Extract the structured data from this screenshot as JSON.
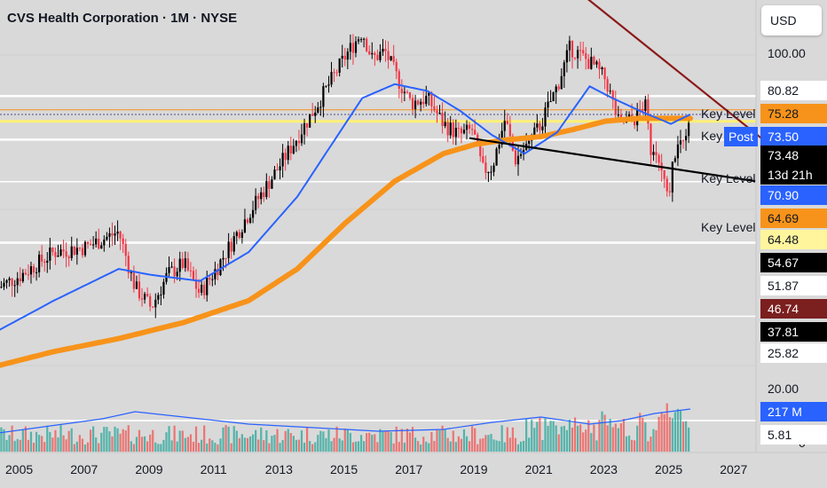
{
  "chart_header": {
    "title": "CVS Health Corporation · 1M · NYSE",
    "currency": "USD"
  },
  "y_axis_ticks": [
    "100.00",
    "20.00",
    "0"
  ],
  "x_axis_ticks": [
    "2005",
    "2007",
    "2009",
    "2011",
    "2013",
    "2015",
    "2017",
    "2019",
    "2021",
    "2023",
    "2025",
    "2027"
  ],
  "price_labels": [
    {
      "text": "80.82",
      "bg": "#ffffff",
      "fg": "#131722"
    },
    {
      "text": "75.28",
      "bg": "#f7931a",
      "fg": "#131722"
    },
    {
      "text": "73.50",
      "bg": "#2962ff",
      "fg": "#ffffff"
    },
    {
      "text": "73.48",
      "bg": "#000000",
      "fg": "#ffffff"
    },
    {
      "text": "70.90",
      "bg": "#2962ff",
      "fg": "#ffffff"
    },
    {
      "text": "64.69",
      "bg": "#f7931a",
      "fg": "#131722"
    },
    {
      "text": "64.48",
      "bg": "#fff59d",
      "fg": "#131722"
    },
    {
      "text": "54.67",
      "bg": "#000000",
      "fg": "#ffffff"
    },
    {
      "text": "51.87",
      "bg": "#ffffff",
      "fg": "#131722"
    },
    {
      "text": "46.74",
      "bg": "#7b1f1f",
      "fg": "#ffffff"
    },
    {
      "text": "37.81",
      "bg": "#000000",
      "fg": "#ffffff"
    },
    {
      "text": "25.82",
      "bg": "#ffffff",
      "fg": "#131722"
    },
    {
      "text": "217 M",
      "bg": "#2962ff",
      "fg": "#ffffff"
    },
    {
      "text": "5.81",
      "bg": "#ffffff",
      "fg": "#131722"
    }
  ],
  "countdown": "13d 21h",
  "post_badge": "Post",
  "key_level_labels": [
    "Key Level",
    "Key",
    "Key Level",
    "Key Level"
  ],
  "colors": {
    "background": "#d9d9d9",
    "up_candle": "#000000",
    "down_candle": "#f23645",
    "ma_fast": "#2962ff",
    "ma_slow": "#f7931a",
    "downtrend": "#8b1a1a",
    "support_line": "#000000",
    "key_level_white": "#ffffff",
    "key_level_yellow": "#fff176",
    "key_level_orange": "#f7931a",
    "volume_up": "#26a69a",
    "volume_down": "#ef5350"
  },
  "chart_data": {
    "type": "candlestick",
    "interval": "1M",
    "y_scale": "log",
    "x_range": [
      2004.3,
      2027.9
    ],
    "y_range_price": [
      13,
      140
    ],
    "close_path": [
      [
        2004.3,
        30
      ],
      [
        2005.0,
        32
      ],
      [
        2006.0,
        36
      ],
      [
        2007.0,
        37
      ],
      [
        2008.0,
        40
      ],
      [
        2008.5,
        30
      ],
      [
        2009.0,
        27
      ],
      [
        2009.5,
        32
      ],
      [
        2010.0,
        34
      ],
      [
        2010.5,
        29
      ],
      [
        2011.0,
        33
      ],
      [
        2012.0,
        44
      ],
      [
        2013.0,
        57
      ],
      [
        2014.0,
        75
      ],
      [
        2015.0,
        100
      ],
      [
        2015.5,
        113
      ],
      [
        2015.8,
        98
      ],
      [
        2016.2,
        102
      ],
      [
        2016.6,
        88
      ],
      [
        2017.0,
        78
      ],
      [
        2017.5,
        80
      ],
      [
        2018.0,
        70
      ],
      [
        2018.5,
        66
      ],
      [
        2018.9,
        68
      ],
      [
        2019.2,
        55
      ],
      [
        2019.5,
        56
      ],
      [
        2019.9,
        72
      ],
      [
        2020.2,
        58
      ],
      [
        2020.6,
        63
      ],
      [
        2021.0,
        70
      ],
      [
        2021.5,
        85
      ],
      [
        2021.9,
        104
      ],
      [
        2022.2,
        100
      ],
      [
        2022.6,
        95
      ],
      [
        2023.0,
        88
      ],
      [
        2023.4,
        70
      ],
      [
        2023.9,
        72
      ],
      [
        2024.2,
        78
      ],
      [
        2024.4,
        60
      ],
      [
        2024.7,
        56
      ],
      [
        2024.9,
        47
      ],
      [
        2025.1,
        60
      ],
      [
        2025.4,
        66
      ],
      [
        2025.6,
        73.48
      ]
    ],
    "ma_fast_path": [
      [
        2004.3,
        24
      ],
      [
        2006,
        28
      ],
      [
        2008,
        33
      ],
      [
        2009,
        32
      ],
      [
        2010.5,
        31
      ],
      [
        2012,
        36
      ],
      [
        2013.5,
        48
      ],
      [
        2014.5,
        62
      ],
      [
        2015.5,
        80
      ],
      [
        2016.5,
        86
      ],
      [
        2017.5,
        83
      ],
      [
        2018.5,
        75
      ],
      [
        2019.5,
        66
      ],
      [
        2020.5,
        60
      ],
      [
        2021.5,
        67
      ],
      [
        2022.5,
        85
      ],
      [
        2023.2,
        80
      ],
      [
        2024.2,
        74
      ],
      [
        2025.0,
        70
      ],
      [
        2025.6,
        73.5
      ]
    ],
    "ma_slow_path": [
      [
        2004.3,
        20
      ],
      [
        2006,
        21.5
      ],
      [
        2008,
        23
      ],
      [
        2010,
        25
      ],
      [
        2012,
        28
      ],
      [
        2013.5,
        33
      ],
      [
        2015,
        42
      ],
      [
        2016.5,
        52
      ],
      [
        2018,
        60
      ],
      [
        2019,
        63
      ],
      [
        2020,
        64.5
      ],
      [
        2021,
        65.5
      ],
      [
        2022,
        68
      ],
      [
        2023,
        71
      ],
      [
        2024,
        72
      ],
      [
        2025,
        72
      ],
      [
        2025.6,
        72
      ]
    ],
    "key_levels": [
      80.82,
      75.28,
      73.5,
      70.9,
      64.48,
      51.87,
      37.81,
      25.82
    ],
    "trendlines": [
      {
        "name": "downtrend",
        "from": [
          2022.1,
          140
        ],
        "to": [
          2027.9,
          64
        ]
      },
      {
        "name": "support",
        "from": [
          2018.8,
          65
        ],
        "to": [
          2027.6,
          52
        ]
      }
    ],
    "volume": {
      "last": "217 M",
      "ma_last": "5.81"
    }
  }
}
